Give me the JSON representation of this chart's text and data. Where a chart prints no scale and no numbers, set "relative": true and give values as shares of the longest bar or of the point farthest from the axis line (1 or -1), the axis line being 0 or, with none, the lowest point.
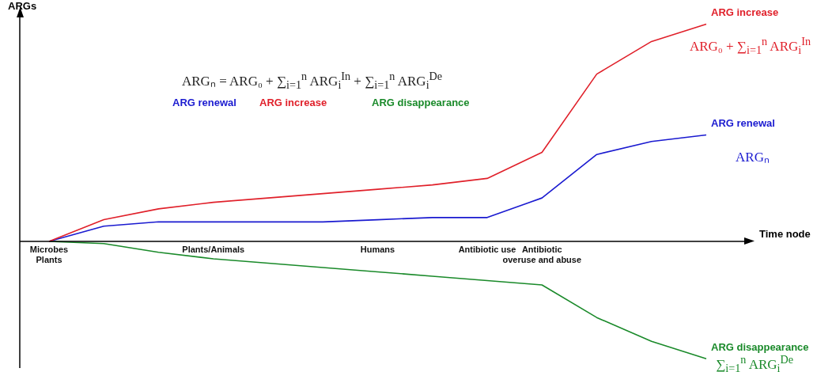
{
  "chart_data": {
    "type": "line",
    "relative": true,
    "ylabel": "ARGs",
    "xlabel": "Time node",
    "legend": false,
    "marker": "none",
    "tick_labels": "x",
    "categories": [
      "Microbes\nPlants",
      null,
      null,
      "Plants/Animals",
      null,
      null,
      "Humans",
      null,
      "Antibiotic use",
      "Antibiotic\noveruse and abuse",
      null,
      null,
      null
    ],
    "series": [
      {
        "name": "ARG increase",
        "color": "#e0202a",
        "values": [
          0,
          0.1,
          0.15,
          0.18,
          0.2,
          0.22,
          0.24,
          0.26,
          0.29,
          0.41,
          0.77,
          0.92,
          1
        ]
      },
      {
        "name": "ARG renewal",
        "color": "#1a1ad0",
        "values": [
          0,
          0.07,
          0.09,
          0.09,
          0.09,
          0.09,
          0.1,
          0.11,
          0.11,
          0.2,
          0.4,
          0.46,
          0.49
        ]
      },
      {
        "name": "ARG disappearance",
        "color": "#1a8a2a",
        "values": [
          0,
          -0.01,
          -0.05,
          -0.08,
          -0.1,
          -0.12,
          -0.14,
          -0.16,
          -0.18,
          -0.2,
          -0.35,
          -0.46,
          -0.54
        ]
      }
    ],
    "annotations": [
      "ARGₙ = ARG₀ + ∑$_{i=1}$$^{n}$ ARG$_{i}$$^{In}$ + ∑$_{i=1}$$^{n}$ ARG$_{i}$$^{De}$",
      "ARG renewal",
      "ARG increase",
      "ARG disappearance",
      "ARG₀ + ∑$_{i=1}$$^{n}$ ARG$_{i}$$^{In}$",
      "ARGₙ",
      "∑$_{i=1}$$^{n}$ ARG$_{i}$$^{De}$"
    ]
  }
}
